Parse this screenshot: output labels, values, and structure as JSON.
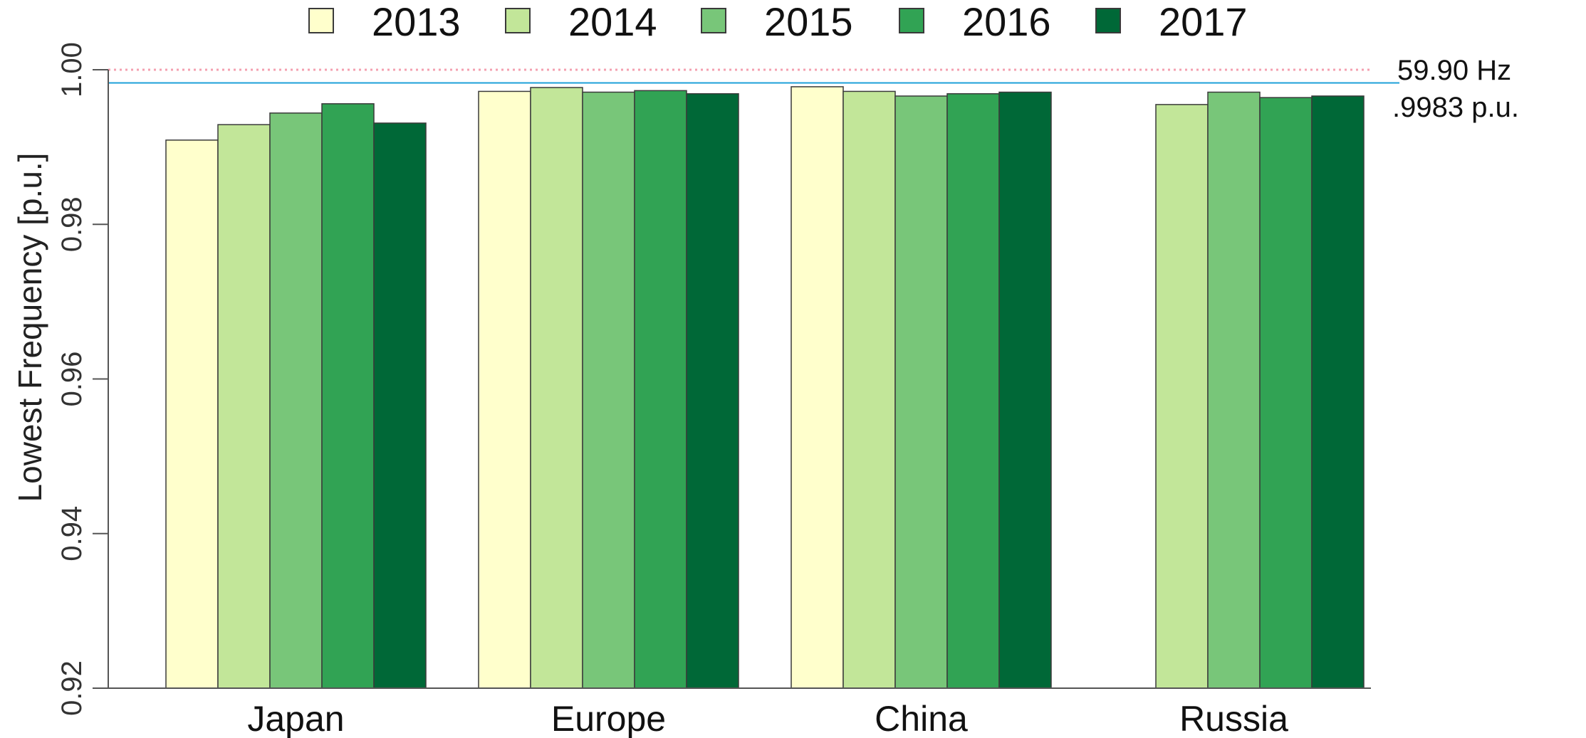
{
  "chart_data": {
    "type": "bar",
    "ylabel": "Lowest Frequency [p.u.]",
    "xlabel": "",
    "ylim": [
      0.92,
      1.0
    ],
    "yticks": [
      0.92,
      0.94,
      0.96,
      0.98,
      1.0
    ],
    "ytick_labels": [
      "0.92",
      "0.94",
      "0.96",
      "0.98",
      "1.00"
    ],
    "categories": [
      "Japan",
      "Europe",
      "China",
      "Russia"
    ],
    "series": [
      {
        "name": "2013",
        "color": "#ffffcc",
        "values": [
          0.9909,
          0.9972,
          0.9978,
          null
        ]
      },
      {
        "name": "2014",
        "color": "#c2e699",
        "values": [
          0.9929,
          0.9977,
          0.9972,
          0.9955
        ]
      },
      {
        "name": "2015",
        "color": "#78c679",
        "values": [
          0.9944,
          0.9971,
          0.9966,
          0.9971
        ]
      },
      {
        "name": "2016",
        "color": "#31a354",
        "values": [
          0.9956,
          0.9973,
          0.9969,
          0.9964
        ]
      },
      {
        "name": "2017",
        "color": "#006837",
        "values": [
          0.9931,
          0.9969,
          0.9971,
          0.9966
        ]
      }
    ],
    "legend_position": "top",
    "reference_lines": [
      {
        "value": 1.0,
        "style": "dotted",
        "color": "#f4a0b0"
      },
      {
        "value": 0.9983,
        "style": "solid",
        "color": "#1ea0d8"
      }
    ],
    "annotation": {
      "line1": "59.90 Hz",
      "line2": ".9983 p.u."
    },
    "grid": false
  }
}
